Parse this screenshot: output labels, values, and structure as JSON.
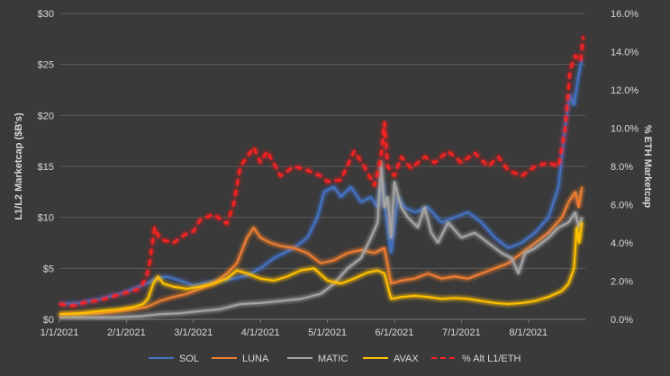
{
  "chart_data": {
    "type": "line",
    "title": "",
    "ylabel_left": "L1/L2 Marketcap ($B's)",
    "ylabel_right": "% ETH Marketcap",
    "x_ticks": [
      "1/1/2021",
      "2/1/2021",
      "3/1/2021",
      "4/1/2021",
      "5/1/2021",
      "6/1/2021",
      "7/1/2021",
      "8/1/2021"
    ],
    "x_range_months": [
      0,
      7.85
    ],
    "y_left_ticks": [
      "$0",
      "$5",
      "$10",
      "$15",
      "$20",
      "$25",
      "$30"
    ],
    "y_left_range": [
      0,
      30
    ],
    "y_right_ticks": [
      "0.0%",
      "2.0%",
      "4.0%",
      "6.0%",
      "8.0%",
      "10.0%",
      "12.0%",
      "14.0%",
      "16.0%"
    ],
    "y_right_range": [
      0,
      16
    ],
    "grid": true,
    "legend_position": "bottom",
    "series": [
      {
        "name": "SOL",
        "axis": "left",
        "color": "#4472c4",
        "dash": false,
        "points": [
          [
            0,
            1.5
          ],
          [
            0.3,
            1.6
          ],
          [
            0.6,
            2.0
          ],
          [
            0.9,
            2.5
          ],
          [
            1.1,
            3.0
          ],
          [
            1.3,
            3.5
          ],
          [
            1.45,
            4.0
          ],
          [
            1.6,
            4.2
          ],
          [
            1.8,
            3.8
          ],
          [
            2.0,
            3.3
          ],
          [
            2.2,
            3.6
          ],
          [
            2.4,
            3.8
          ],
          [
            2.6,
            4.0
          ],
          [
            2.8,
            4.3
          ],
          [
            3.0,
            5.0
          ],
          [
            3.1,
            5.5
          ],
          [
            3.2,
            6.0
          ],
          [
            3.35,
            6.5
          ],
          [
            3.5,
            7.0
          ],
          [
            3.7,
            8.0
          ],
          [
            3.85,
            10.0
          ],
          [
            3.95,
            12.5
          ],
          [
            4.1,
            13.0
          ],
          [
            4.2,
            12.0
          ],
          [
            4.35,
            13.0
          ],
          [
            4.5,
            11.5
          ],
          [
            4.65,
            12.0
          ],
          [
            4.75,
            11.0
          ],
          [
            4.82,
            13.5
          ],
          [
            4.88,
            10.0
          ],
          [
            4.95,
            6.5
          ],
          [
            5.05,
            12.0
          ],
          [
            5.15,
            11.0
          ],
          [
            5.3,
            10.5
          ],
          [
            5.5,
            11.0
          ],
          [
            5.7,
            9.5
          ],
          [
            5.9,
            10.0
          ],
          [
            6.1,
            10.5
          ],
          [
            6.3,
            9.5
          ],
          [
            6.5,
            8.0
          ],
          [
            6.7,
            7.0
          ],
          [
            6.9,
            7.5
          ],
          [
            7.1,
            8.5
          ],
          [
            7.3,
            10.0
          ],
          [
            7.45,
            13.0
          ],
          [
            7.55,
            19.0
          ],
          [
            7.62,
            22.0
          ],
          [
            7.68,
            21.0
          ],
          [
            7.75,
            24.0
          ],
          [
            7.8,
            25.5
          ]
        ]
      },
      {
        "name": "LUNA",
        "axis": "left",
        "color": "#ed7d31",
        "dash": false,
        "points": [
          [
            0,
            0.5
          ],
          [
            0.3,
            0.5
          ],
          [
            0.6,
            0.6
          ],
          [
            0.9,
            0.8
          ],
          [
            1.1,
            1.0
          ],
          [
            1.3,
            1.2
          ],
          [
            1.5,
            1.8
          ],
          [
            1.7,
            2.2
          ],
          [
            1.9,
            2.5
          ],
          [
            2.1,
            3.0
          ],
          [
            2.3,
            3.5
          ],
          [
            2.5,
            4.5
          ],
          [
            2.65,
            5.5
          ],
          [
            2.8,
            8.0
          ],
          [
            2.9,
            9.0
          ],
          [
            3.0,
            8.0
          ],
          [
            3.15,
            7.5
          ],
          [
            3.3,
            7.2
          ],
          [
            3.5,
            7.0
          ],
          [
            3.7,
            6.5
          ],
          [
            3.9,
            5.5
          ],
          [
            4.1,
            5.8
          ],
          [
            4.3,
            6.5
          ],
          [
            4.5,
            6.8
          ],
          [
            4.7,
            6.5
          ],
          [
            4.85,
            7.0
          ],
          [
            4.95,
            3.5
          ],
          [
            5.1,
            3.8
          ],
          [
            5.3,
            4.0
          ],
          [
            5.5,
            4.5
          ],
          [
            5.7,
            4.0
          ],
          [
            5.9,
            4.2
          ],
          [
            6.1,
            4.0
          ],
          [
            6.3,
            4.5
          ],
          [
            6.5,
            5.0
          ],
          [
            6.7,
            5.5
          ],
          [
            6.9,
            6.5
          ],
          [
            7.1,
            7.5
          ],
          [
            7.3,
            8.5
          ],
          [
            7.5,
            10.0
          ],
          [
            7.6,
            11.5
          ],
          [
            7.7,
            12.5
          ],
          [
            7.75,
            11.0
          ],
          [
            7.8,
            13.0
          ]
        ]
      },
      {
        "name": "MATIC",
        "axis": "left",
        "color": "#a5a5a5",
        "dash": false,
        "points": [
          [
            0,
            0.2
          ],
          [
            0.4,
            0.2
          ],
          [
            0.8,
            0.2
          ],
          [
            1.2,
            0.3
          ],
          [
            1.5,
            0.5
          ],
          [
            1.8,
            0.6
          ],
          [
            2.1,
            0.8
          ],
          [
            2.4,
            1.0
          ],
          [
            2.7,
            1.5
          ],
          [
            3.0,
            1.6
          ],
          [
            3.3,
            1.8
          ],
          [
            3.6,
            2.0
          ],
          [
            3.9,
            2.5
          ],
          [
            4.1,
            3.5
          ],
          [
            4.3,
            5.0
          ],
          [
            4.5,
            6.0
          ],
          [
            4.65,
            8.0
          ],
          [
            4.75,
            9.5
          ],
          [
            4.8,
            15.5
          ],
          [
            4.85,
            11.0
          ],
          [
            4.9,
            12.0
          ],
          [
            4.95,
            8.0
          ],
          [
            5.0,
            13.5
          ],
          [
            5.1,
            11.0
          ],
          [
            5.2,
            10.0
          ],
          [
            5.35,
            9.0
          ],
          [
            5.45,
            11.0
          ],
          [
            5.55,
            8.5
          ],
          [
            5.65,
            7.5
          ],
          [
            5.8,
            9.5
          ],
          [
            6.0,
            8.0
          ],
          [
            6.2,
            8.5
          ],
          [
            6.4,
            7.5
          ],
          [
            6.6,
            6.5
          ],
          [
            6.75,
            6.0
          ],
          [
            6.85,
            4.5
          ],
          [
            6.95,
            6.5
          ],
          [
            7.1,
            7.0
          ],
          [
            7.3,
            8.0
          ],
          [
            7.45,
            9.0
          ],
          [
            7.6,
            9.5
          ],
          [
            7.7,
            10.5
          ],
          [
            7.75,
            9.0
          ],
          [
            7.8,
            10.0
          ]
        ]
      },
      {
        "name": "AVAX",
        "axis": "left",
        "color": "#ffc000",
        "dash": false,
        "points": [
          [
            0,
            0.5
          ],
          [
            0.3,
            0.6
          ],
          [
            0.6,
            0.8
          ],
          [
            0.9,
            1.0
          ],
          [
            1.1,
            1.2
          ],
          [
            1.25,
            1.5
          ],
          [
            1.32,
            2.0
          ],
          [
            1.4,
            3.5
          ],
          [
            1.47,
            4.2
          ],
          [
            1.55,
            3.5
          ],
          [
            1.7,
            3.2
          ],
          [
            1.9,
            3.0
          ],
          [
            2.1,
            3.2
          ],
          [
            2.3,
            3.5
          ],
          [
            2.5,
            4.0
          ],
          [
            2.65,
            4.8
          ],
          [
            2.8,
            4.5
          ],
          [
            3.0,
            4.0
          ],
          [
            3.2,
            3.8
          ],
          [
            3.4,
            4.2
          ],
          [
            3.6,
            4.8
          ],
          [
            3.8,
            5.0
          ],
          [
            4.0,
            3.8
          ],
          [
            4.2,
            3.5
          ],
          [
            4.4,
            4.0
          ],
          [
            4.6,
            4.6
          ],
          [
            4.75,
            4.8
          ],
          [
            4.85,
            4.5
          ],
          [
            4.95,
            2.0
          ],
          [
            5.1,
            2.2
          ],
          [
            5.3,
            2.3
          ],
          [
            5.5,
            2.2
          ],
          [
            5.7,
            2.0
          ],
          [
            5.9,
            2.1
          ],
          [
            6.1,
            2.0
          ],
          [
            6.3,
            1.8
          ],
          [
            6.5,
            1.6
          ],
          [
            6.7,
            1.5
          ],
          [
            6.9,
            1.6
          ],
          [
            7.1,
            1.8
          ],
          [
            7.3,
            2.2
          ],
          [
            7.5,
            2.8
          ],
          [
            7.6,
            3.5
          ],
          [
            7.68,
            5.0
          ],
          [
            7.72,
            9.0
          ],
          [
            7.76,
            7.5
          ],
          [
            7.8,
            9.5
          ]
        ]
      },
      {
        "name": "% Alt L1/ETH",
        "axis": "right",
        "color": "#ff2020",
        "dash": true,
        "points": [
          [
            0,
            0.8
          ],
          [
            0.2,
            0.7
          ],
          [
            0.4,
            0.9
          ],
          [
            0.6,
            1.0
          ],
          [
            0.8,
            1.2
          ],
          [
            1.0,
            1.4
          ],
          [
            1.2,
            1.6
          ],
          [
            1.3,
            2.2
          ],
          [
            1.35,
            3.0
          ],
          [
            1.42,
            4.8
          ],
          [
            1.5,
            4.2
          ],
          [
            1.7,
            4.0
          ],
          [
            1.9,
            4.5
          ],
          [
            2.0,
            4.6
          ],
          [
            2.1,
            5.2
          ],
          [
            2.3,
            5.5
          ],
          [
            2.5,
            5.0
          ],
          [
            2.6,
            6.0
          ],
          [
            2.7,
            8.0
          ],
          [
            2.8,
            8.5
          ],
          [
            2.9,
            9.0
          ],
          [
            3.0,
            8.2
          ],
          [
            3.1,
            8.8
          ],
          [
            3.3,
            7.5
          ],
          [
            3.5,
            8.0
          ],
          [
            3.7,
            7.8
          ],
          [
            3.9,
            7.5
          ],
          [
            4.0,
            7.2
          ],
          [
            4.2,
            7.3
          ],
          [
            4.4,
            8.8
          ],
          [
            4.55,
            8.0
          ],
          [
            4.7,
            7.0
          ],
          [
            4.8,
            8.5
          ],
          [
            4.85,
            10.3
          ],
          [
            4.9,
            8.0
          ],
          [
            5.0,
            7.5
          ],
          [
            5.1,
            8.5
          ],
          [
            5.25,
            7.9
          ],
          [
            5.45,
            8.5
          ],
          [
            5.6,
            8.2
          ],
          [
            5.8,
            8.8
          ],
          [
            6.0,
            8.2
          ],
          [
            6.2,
            8.7
          ],
          [
            6.4,
            8.0
          ],
          [
            6.55,
            8.5
          ],
          [
            6.7,
            7.8
          ],
          [
            6.9,
            7.5
          ],
          [
            7.1,
            8.0
          ],
          [
            7.3,
            8.2
          ],
          [
            7.45,
            8.0
          ],
          [
            7.55,
            10.0
          ],
          [
            7.62,
            13.0
          ],
          [
            7.7,
            13.8
          ],
          [
            7.78,
            13.5
          ],
          [
            7.82,
            14.8
          ]
        ]
      }
    ]
  }
}
